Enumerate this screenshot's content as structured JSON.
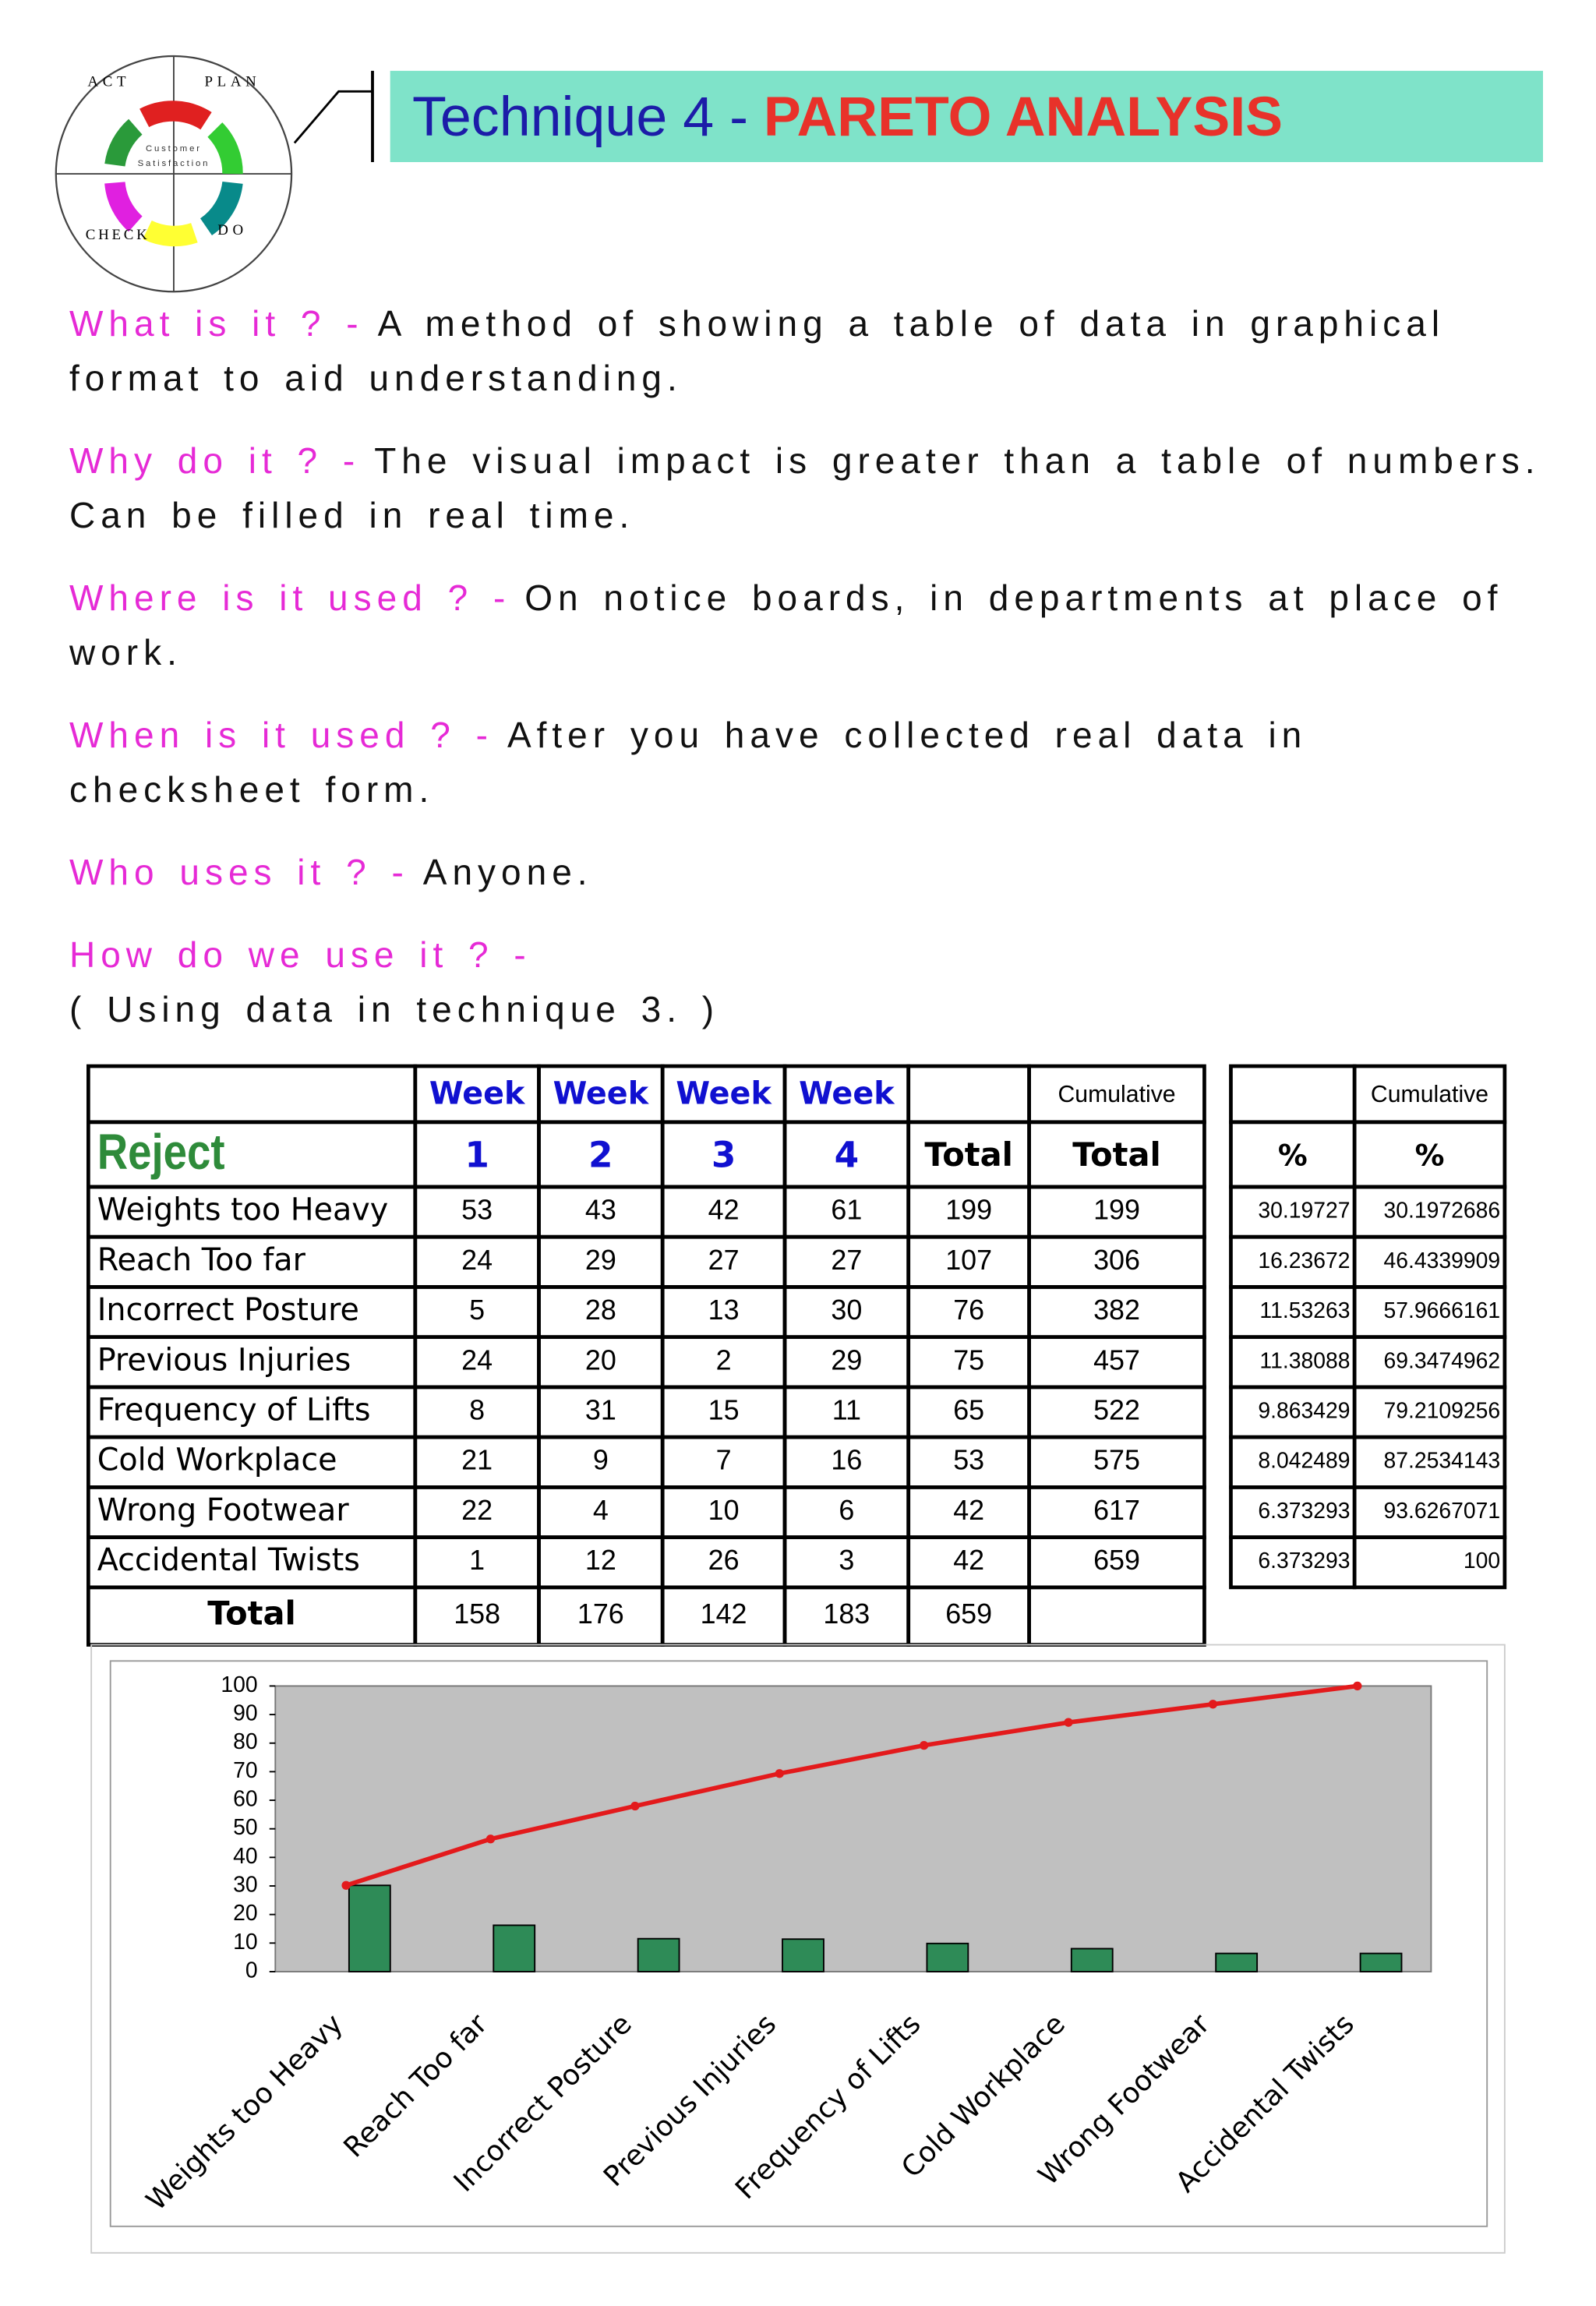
{
  "header": {
    "title_prefix": "Technique 4 - ",
    "title": "PARETO ANALYSIS"
  },
  "logo": {
    "labels": [
      "ACT",
      "PLAN",
      "CHECK",
      "DO"
    ],
    "center": [
      "Customer",
      "Satisfaction"
    ]
  },
  "qa": [
    {
      "q": "What is it ? -",
      "a": "A method of showing a table of data in graphical format to aid understanding."
    },
    {
      "q": "Why do it ? -",
      "a": "The visual impact is greater than a table of numbers. Can be filled in real time."
    },
    {
      "q": "Where is it used ? -",
      "a": "On notice boards, in departments at place of work."
    },
    {
      "q": "When is it used ? -",
      "a": "After you have collected real data in checksheet form."
    },
    {
      "q": "Who uses it ? -",
      "a": "Anyone."
    },
    {
      "q": "How do we use it ? -",
      "a": "( Using data in technique 3. )"
    }
  ],
  "table": {
    "week_labels": [
      "Week",
      "Week",
      "Week",
      "Week"
    ],
    "cumulative_labels": [
      "Cumulative",
      "Cumulative"
    ],
    "header": [
      "Reject",
      "1",
      "2",
      "3",
      "4",
      "Total",
      "Total",
      "%",
      "%"
    ],
    "rows": [
      [
        "Weights too Heavy",
        53,
        43,
        42,
        61,
        199,
        199,
        30.19727,
        30.1972686
      ],
      [
        "Reach Too far",
        24,
        29,
        27,
        27,
        107,
        306,
        16.23672,
        46.4339909
      ],
      [
        "Incorrect Posture",
        5,
        28,
        13,
        30,
        76,
        382,
        11.53263,
        57.9666161
      ],
      [
        "Previous Injuries",
        24,
        20,
        2,
        29,
        75,
        457,
        11.38088,
        69.3474962
      ],
      [
        "Frequency of Lifts",
        8,
        31,
        15,
        11,
        65,
        522,
        9.863429,
        79.2109256
      ],
      [
        "Cold Workplace",
        21,
        9,
        7,
        16,
        53,
        575,
        8.042489,
        87.2534143
      ],
      [
        "Wrong Footwear",
        22,
        4,
        10,
        6,
        42,
        617,
        6.373293,
        93.6267071
      ],
      [
        "Accidental Twists",
        1,
        12,
        26,
        3,
        42,
        659,
        6.373293,
        100
      ]
    ],
    "total_row": [
      "Total",
      158,
      176,
      142,
      183,
      659
    ]
  },
  "chart_data": {
    "type": "pareto",
    "categories": [
      "Weights too Heavy",
      "Reach Too far",
      "Incorrect Posture",
      "Previous Injuries",
      "Frequency of Lifts",
      "Cold Workplace",
      "Wrong Footwear",
      "Accidental Twists"
    ],
    "series": [
      {
        "type": "bar",
        "color": "#2e8b57",
        "values": [
          30.19727,
          16.23672,
          11.53263,
          11.38088,
          9.863429,
          8.042489,
          6.373293,
          6.373293
        ]
      },
      {
        "type": "line",
        "color": "#e31a1c",
        "values": [
          30.1972686,
          46.4339909,
          57.9666161,
          69.3474962,
          79.2109256,
          87.2534143,
          93.6267071,
          100
        ]
      }
    ],
    "ylim": [
      0,
      100
    ],
    "yticks": [
      0,
      10,
      20,
      30,
      40,
      50,
      60,
      70,
      80,
      90,
      100
    ],
    "plot_background": "#c0c0c0"
  }
}
